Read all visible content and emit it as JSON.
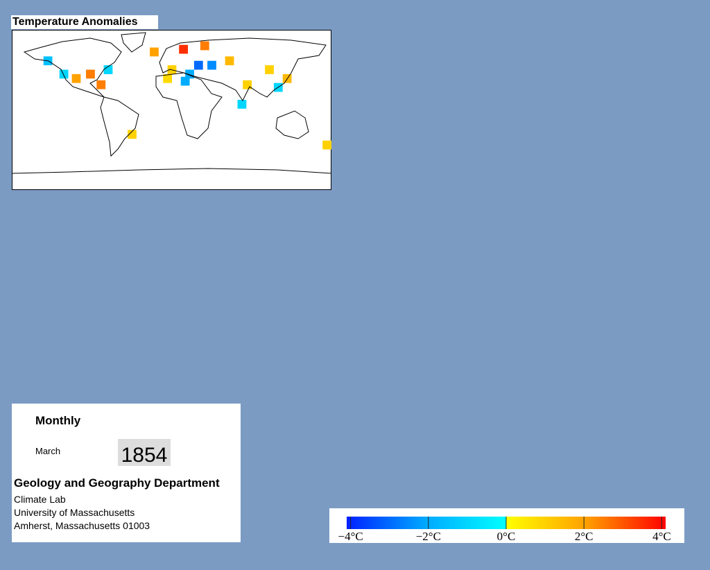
{
  "title": "Temperature Anomalies",
  "map": {
    "cells": [
      {
        "lon": -140,
        "lat": 55,
        "value": -1.5
      },
      {
        "lon": -122,
        "lat": 40,
        "value": -1
      },
      {
        "lon": -108,
        "lat": 35,
        "value": 2
      },
      {
        "lon": -92,
        "lat": 40,
        "value": 2.5
      },
      {
        "lon": -72,
        "lat": 45,
        "value": -1
      },
      {
        "lon": -80,
        "lat": 28,
        "value": 2.5
      },
      {
        "lon": -45,
        "lat": -28,
        "value": 1
      },
      {
        "lon": -20,
        "lat": 65,
        "value": 2
      },
      {
        "lon": 13,
        "lat": 68,
        "value": 3.5
      },
      {
        "lon": 37,
        "lat": 72,
        "value": 2.5
      },
      {
        "lon": 65,
        "lat": 55,
        "value": 1.5
      },
      {
        "lon": 0,
        "lat": 45,
        "value": 1
      },
      {
        "lon": 30,
        "lat": 50,
        "value": -3
      },
      {
        "lon": 45,
        "lat": 50,
        "value": -2.5
      },
      {
        "lon": 20,
        "lat": 40,
        "value": -2
      },
      {
        "lon": -5,
        "lat": 35,
        "value": 0.8
      },
      {
        "lon": 15,
        "lat": 32,
        "value": -2
      },
      {
        "lon": 110,
        "lat": 45,
        "value": 1
      },
      {
        "lon": 120,
        "lat": 25,
        "value": -1
      },
      {
        "lon": 130,
        "lat": 35,
        "value": 1.5
      },
      {
        "lon": 85,
        "lat": 28,
        "value": 1
      },
      {
        "lon": 79,
        "lat": 6,
        "value": -1
      },
      {
        "lon": 175,
        "lat": -40,
        "value": 1
      }
    ]
  },
  "colorbar": {
    "lim": [
      -4.1,
      4.1
    ],
    "ticks": [
      {
        "value": -4,
        "label": "−4°C"
      },
      {
        "value": -2,
        "label": "−2°C"
      },
      {
        "value": 0,
        "label": "0°C"
      },
      {
        "value": 2,
        "label": "2°C"
      },
      {
        "value": 4,
        "label": "4°C"
      }
    ]
  },
  "info": {
    "period": "Monthly",
    "month": "March",
    "year": "1854",
    "department": "Geology and Geography Department",
    "lines": [
      "Climate Lab",
      "University of Massachusetts",
      "Amherst, Massachusetts 01003"
    ]
  }
}
